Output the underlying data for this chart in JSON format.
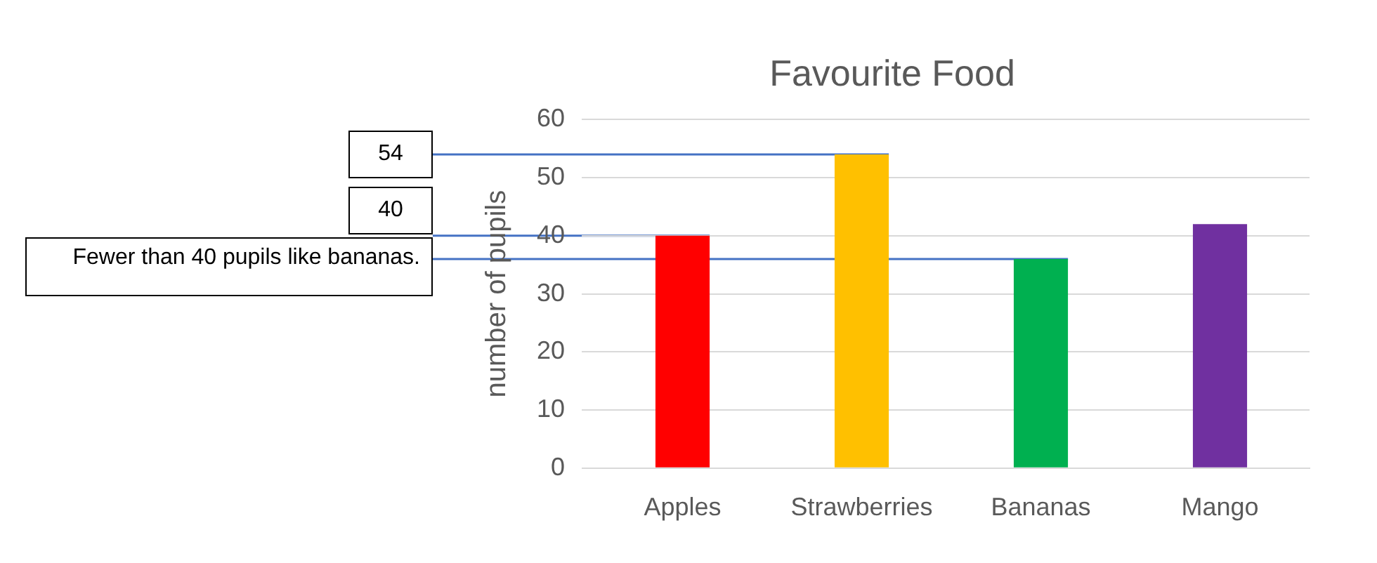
{
  "chart_data": {
    "type": "bar",
    "title": "Favourite Food",
    "ylabel": "number of pupils",
    "categories": [
      "Apples",
      "Strawberries",
      "Bananas",
      "Mango"
    ],
    "values": [
      40,
      54,
      36,
      42
    ],
    "colors": [
      "#ff0000",
      "#ffc000",
      "#00b050",
      "#7030a0"
    ],
    "ylim": [
      0,
      60
    ],
    "yticks": [
      0,
      10,
      20,
      30,
      40,
      50,
      60
    ],
    "grid": "y",
    "ref_lines": [
      {
        "axis": "y",
        "value": 54,
        "label": "54",
        "color": "#4472c4"
      },
      {
        "axis": "y",
        "value": 40,
        "label": "40",
        "color": "#4472c4"
      },
      {
        "axis": "y",
        "value": 36,
        "label": "Fewer than 40 pupils like bananas.",
        "color": "#4472c4"
      }
    ]
  }
}
